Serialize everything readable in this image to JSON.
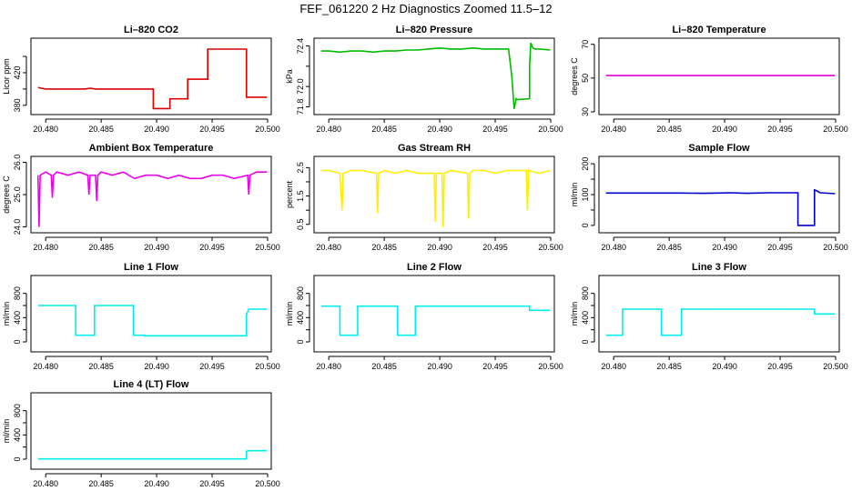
{
  "figure": {
    "title": "FEF_061220  2 Hz Diagnostics Zoomed 11.5–12"
  },
  "chart_data": [
    {
      "type": "line",
      "title": "Li–820 CO2",
      "ylabel": "Licor ppm",
      "color": "#dd0000",
      "xlim": [
        20.479,
        20.5
      ],
      "xticks": [
        20.48,
        20.485,
        20.49,
        20.495,
        20.5
      ],
      "xtick_labels": [
        "20.480",
        "20.485",
        "20.490",
        "20.495",
        "20.500"
      ],
      "ylim": [
        372,
        459
      ],
      "yticks": [
        380,
        400,
        420,
        440
      ],
      "ytick_labels": [
        "380",
        "",
        "420",
        ""
      ],
      "series": [
        {
          "x": [
            20.4793,
            20.4796,
            20.48,
            20.4805,
            20.481,
            20.4815,
            20.482,
            20.4825,
            20.483,
            20.4835,
            20.484,
            20.4845,
            20.485,
            20.4855,
            20.486,
            20.4865,
            20.487,
            20.4875,
            20.488,
            20.4885,
            20.4897,
            20.4897,
            20.4912,
            20.4912,
            20.4928,
            20.4928,
            20.4946,
            20.4946,
            20.4981,
            20.4981,
            20.4985,
            20.49995
          ],
          "y": [
            402,
            401,
            400,
            400,
            400,
            400,
            400,
            400,
            400,
            400,
            401,
            400,
            400,
            400,
            400,
            400,
            400,
            400,
            400,
            400,
            400,
            376,
            376,
            388,
            388,
            412,
            412,
            449,
            449,
            390,
            390,
            390
          ]
        }
      ]
    },
    {
      "type": "line",
      "title": "Li–820 Pressure",
      "ylabel": "kPa",
      "color": "#00bb00",
      "xlim": [
        20.479,
        20.5
      ],
      "xticks": [
        20.48,
        20.485,
        20.49,
        20.495,
        20.5
      ],
      "xtick_labels": [
        "20.480",
        "20.485",
        "20.490",
        "20.495",
        "20.500"
      ],
      "ylim": [
        71.75,
        72.45
      ],
      "yticks": [
        71.8,
        72.0,
        72.2,
        72.4
      ],
      "ytick_labels": [
        "71.8",
        "72.0",
        "",
        "72.4"
      ],
      "series": [
        {
          "x": [
            20.4793,
            20.48,
            20.481,
            20.482,
            20.483,
            20.484,
            20.485,
            20.486,
            20.487,
            20.488,
            20.489,
            20.49,
            20.491,
            20.492,
            20.493,
            20.494,
            20.495,
            20.4962,
            20.4965,
            20.4967,
            20.4969,
            20.497,
            20.4981,
            20.4981,
            20.4982,
            20.4984,
            20.4986,
            20.499,
            20.49995
          ],
          "y": [
            72.35,
            72.35,
            72.34,
            72.35,
            72.35,
            72.34,
            72.35,
            72.35,
            72.36,
            72.36,
            72.37,
            72.38,
            72.37,
            72.37,
            72.38,
            72.37,
            72.37,
            72.37,
            72.1,
            71.78,
            71.88,
            71.87,
            71.88,
            72.2,
            72.43,
            72.38,
            72.37,
            72.37,
            72.36
          ]
        }
      ]
    },
    {
      "type": "line",
      "title": "Li–820 Temperature",
      "ylabel": "degrees C",
      "color": "#dd00dd",
      "xlim": [
        20.479,
        20.5
      ],
      "xticks": [
        20.48,
        20.485,
        20.49,
        20.495,
        20.5
      ],
      "xtick_labels": [
        "20.480",
        "20.485",
        "20.490",
        "20.495",
        "20.500"
      ],
      "ylim": [
        30,
        72
      ],
      "yticks": [
        30,
        50,
        70
      ],
      "ytick_labels": [
        "30",
        "50",
        "70"
      ],
      "series": [
        {
          "x": [
            20.4793,
            20.49995
          ],
          "y": [
            51.5,
            51.5
          ]
        }
      ]
    },
    {
      "type": "line",
      "title": "Ambient Box Temperature",
      "ylabel": "degrees C",
      "color": "#ee00ee",
      "xlim": [
        20.479,
        20.5
      ],
      "xticks": [
        20.48,
        20.485,
        20.49,
        20.495,
        20.5
      ],
      "xtick_labels": [
        "20.480",
        "20.485",
        "20.490",
        "20.495",
        "20.500"
      ],
      "ylim": [
        23.9,
        26.1
      ],
      "yticks": [
        24.0,
        25.0,
        26.0
      ],
      "ytick_labels": [
        "24.0",
        "25.0",
        "26.0"
      ],
      "series": [
        {
          "x": [
            20.4793,
            20.4794,
            20.4795,
            20.48,
            20.4805,
            20.4806,
            20.4807,
            20.481,
            20.482,
            20.483,
            20.4838,
            20.4839,
            20.484,
            20.4845,
            20.4846,
            20.4847,
            20.485,
            20.486,
            20.487,
            20.488,
            20.489,
            20.49,
            20.491,
            20.492,
            20.493,
            20.494,
            20.495,
            20.496,
            20.497,
            20.4982,
            20.4983,
            20.4984,
            20.499,
            20.49995
          ],
          "y": [
            25.6,
            24.0,
            25.6,
            25.7,
            25.6,
            24.9,
            25.6,
            25.7,
            25.6,
            25.7,
            25.6,
            25.0,
            25.6,
            25.6,
            24.8,
            25.6,
            25.7,
            25.6,
            25.7,
            25.5,
            25.6,
            25.6,
            25.5,
            25.6,
            25.5,
            25.5,
            25.6,
            25.6,
            25.5,
            25.6,
            25.0,
            25.6,
            25.7,
            25.7
          ]
        }
      ]
    },
    {
      "type": "line",
      "title": "Gas Stream RH",
      "ylabel": "percent",
      "color": "#ffee00",
      "xlim": [
        20.479,
        20.5
      ],
      "xticks": [
        20.48,
        20.485,
        20.49,
        20.495,
        20.5
      ],
      "xtick_labels": [
        "20.480",
        "20.485",
        "20.490",
        "20.495",
        "20.500"
      ],
      "ylim": [
        0.3,
        2.8
      ],
      "yticks": [
        0.5,
        1.0,
        1.5,
        2.0,
        2.5
      ],
      "ytick_labels": [
        "0.5",
        "",
        "1.5",
        "",
        "2.5"
      ],
      "series": [
        {
          "x": [
            20.4793,
            20.48,
            20.481,
            20.4812,
            20.4813,
            20.482,
            20.483,
            20.4843,
            20.4844,
            20.4845,
            20.485,
            20.486,
            20.487,
            20.488,
            20.4895,
            20.4896,
            20.4897,
            20.4902,
            20.4903,
            20.4904,
            20.491,
            20.4925,
            20.4926,
            20.4927,
            20.493,
            20.494,
            20.495,
            20.496,
            20.4978,
            20.4979,
            20.498,
            20.499,
            20.49995
          ],
          "y": [
            2.4,
            2.4,
            2.3,
            1.0,
            2.3,
            2.4,
            2.4,
            2.3,
            0.9,
            2.3,
            2.4,
            2.3,
            2.4,
            2.3,
            2.3,
            0.6,
            2.3,
            2.3,
            0.4,
            2.3,
            2.4,
            2.3,
            0.7,
            2.3,
            2.4,
            2.4,
            2.3,
            2.4,
            2.4,
            1.0,
            2.4,
            2.3,
            2.4
          ]
        }
      ]
    },
    {
      "type": "line",
      "title": "Sample Flow",
      "ylabel": "ml/min",
      "color": "#0000cc",
      "xlim": [
        20.479,
        20.5
      ],
      "xticks": [
        20.48,
        20.485,
        20.49,
        20.495,
        20.5
      ],
      "xtick_labels": [
        "20.480",
        "20.485",
        "20.490",
        "20.495",
        "20.500"
      ],
      "ylim": [
        -15,
        215
      ],
      "yticks": [
        0,
        50,
        100,
        150,
        200
      ],
      "ytick_labels": [
        "0",
        "",
        "100",
        "",
        "200"
      ],
      "series": [
        {
          "x": [
            20.4793,
            20.48,
            20.482,
            20.484,
            20.486,
            20.488,
            20.4895,
            20.4905,
            20.492,
            20.494,
            20.4966,
            20.4966,
            20.4981,
            20.4981,
            20.4983,
            20.4986,
            20.49995
          ],
          "y": [
            105,
            105,
            105,
            105,
            105,
            104,
            105,
            106,
            104,
            106,
            106,
            0,
            0,
            115,
            112,
            106,
            103
          ]
        }
      ]
    },
    {
      "type": "line",
      "title": "Line 1 Flow",
      "ylabel": "ml/min",
      "color": "#00eeee",
      "xlim": [
        20.479,
        20.5
      ],
      "xticks": [
        20.48,
        20.485,
        20.49,
        20.495,
        20.5
      ],
      "xtick_labels": [
        "20.480",
        "20.485",
        "20.490",
        "20.495",
        "20.500"
      ],
      "ylim": [
        -120,
        1050
      ],
      "yticks": [
        0,
        200,
        400,
        600,
        800
      ],
      "ytick_labels": [
        "0",
        "",
        "400",
        "",
        "800"
      ],
      "series": [
        {
          "x": [
            20.4793,
            20.4827,
            20.4827,
            20.4844,
            20.4844,
            20.4879,
            20.4879,
            20.4889,
            20.4889,
            20.4981,
            20.4981,
            20.4983,
            20.49995
          ],
          "y": [
            600,
            600,
            110,
            110,
            600,
            600,
            110,
            110,
            100,
            100,
            450,
            540,
            540
          ]
        }
      ]
    },
    {
      "type": "line",
      "title": "Line 2 Flow",
      "ylabel": "ml/min",
      "color": "#00eeee",
      "xlim": [
        20.479,
        20.5
      ],
      "xticks": [
        20.48,
        20.485,
        20.49,
        20.495,
        20.5
      ],
      "xtick_labels": [
        "20.480",
        "20.485",
        "20.490",
        "20.495",
        "20.500"
      ],
      "ylim": [
        -120,
        1050
      ],
      "yticks": [
        0,
        200,
        400,
        600,
        800
      ],
      "ytick_labels": [
        "0",
        "",
        "400",
        "",
        "800"
      ],
      "series": [
        {
          "x": [
            20.4793,
            20.481,
            20.481,
            20.4826,
            20.4826,
            20.4862,
            20.4862,
            20.4878,
            20.4878,
            20.4981,
            20.4981,
            20.49995
          ],
          "y": [
            590,
            590,
            110,
            110,
            590,
            590,
            110,
            110,
            590,
            590,
            520,
            520
          ]
        }
      ]
    },
    {
      "type": "line",
      "title": "Line 3 Flow",
      "ylabel": "ml/min",
      "color": "#00eeee",
      "xlim": [
        20.479,
        20.5
      ],
      "xticks": [
        20.48,
        20.485,
        20.49,
        20.495,
        20.5
      ],
      "xtick_labels": [
        "20.480",
        "20.485",
        "20.490",
        "20.495",
        "20.500"
      ],
      "ylim": [
        -120,
        1050
      ],
      "yticks": [
        0,
        200,
        400,
        600,
        800
      ],
      "ytick_labels": [
        "0",
        "",
        "400",
        "",
        "800"
      ],
      "series": [
        {
          "x": [
            20.4793,
            20.4808,
            20.4808,
            20.4843,
            20.4843,
            20.4861,
            20.4861,
            20.4981,
            20.4981,
            20.49995
          ],
          "y": [
            110,
            110,
            540,
            540,
            110,
            110,
            540,
            540,
            460,
            460
          ]
        }
      ]
    },
    {
      "type": "line",
      "title": "Line 4 (LT) Flow",
      "ylabel": "ml/min",
      "color": "#00eeee",
      "xlim": [
        20.479,
        20.5
      ],
      "xticks": [
        20.48,
        20.485,
        20.49,
        20.495,
        20.5
      ],
      "xtick_labels": [
        "20.480",
        "20.485",
        "20.490",
        "20.495",
        "20.500"
      ],
      "ylim": [
        -120,
        1050
      ],
      "yticks": [
        0,
        200,
        400,
        600,
        800
      ],
      "ytick_labels": [
        "0",
        "",
        "400",
        "",
        "800"
      ],
      "series": [
        {
          "x": [
            20.4793,
            20.4981,
            20.4981,
            20.4983,
            20.49995
          ],
          "y": [
            5,
            5,
            130,
            140,
            140
          ]
        }
      ]
    }
  ]
}
